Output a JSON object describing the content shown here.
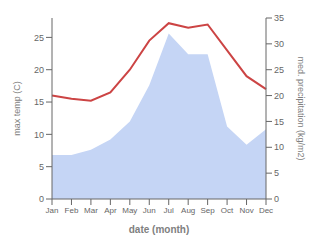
{
  "chart_data": {
    "type": "line",
    "categories": [
      "Jan",
      "Feb",
      "Mar",
      "Apr",
      "May",
      "Jun",
      "Jul",
      "Aug",
      "Sep",
      "Oct",
      "Nov",
      "Dec"
    ],
    "series": [
      {
        "type": "area",
        "color": "#c5d5f5",
        "axis": "y2",
        "values": [
          8.5,
          8.5,
          9.5,
          11.5,
          15.0,
          22.0,
          32.0,
          28.0,
          28.0,
          14.0,
          10.5,
          13.5
        ]
      },
      {
        "type": "line",
        "color": "#cc4444",
        "values": [
          16.0,
          15.5,
          15.2,
          16.5,
          20.0,
          24.5,
          27.2,
          26.5,
          27.0,
          23.0,
          19.0,
          17.0
        ]
      }
    ],
    "xlabel": "date (month)",
    "ylabel": "max temp (C)",
    "y2label": "med. precipitation (kg/m2)",
    "ylim": [
      0,
      28
    ],
    "yticks": [
      0,
      5,
      10,
      15,
      20,
      25
    ],
    "y2lim": [
      0,
      35
    ],
    "y2ticks": [
      0,
      5,
      10,
      15,
      20,
      25,
      30,
      35
    ],
    "grid": false
  }
}
